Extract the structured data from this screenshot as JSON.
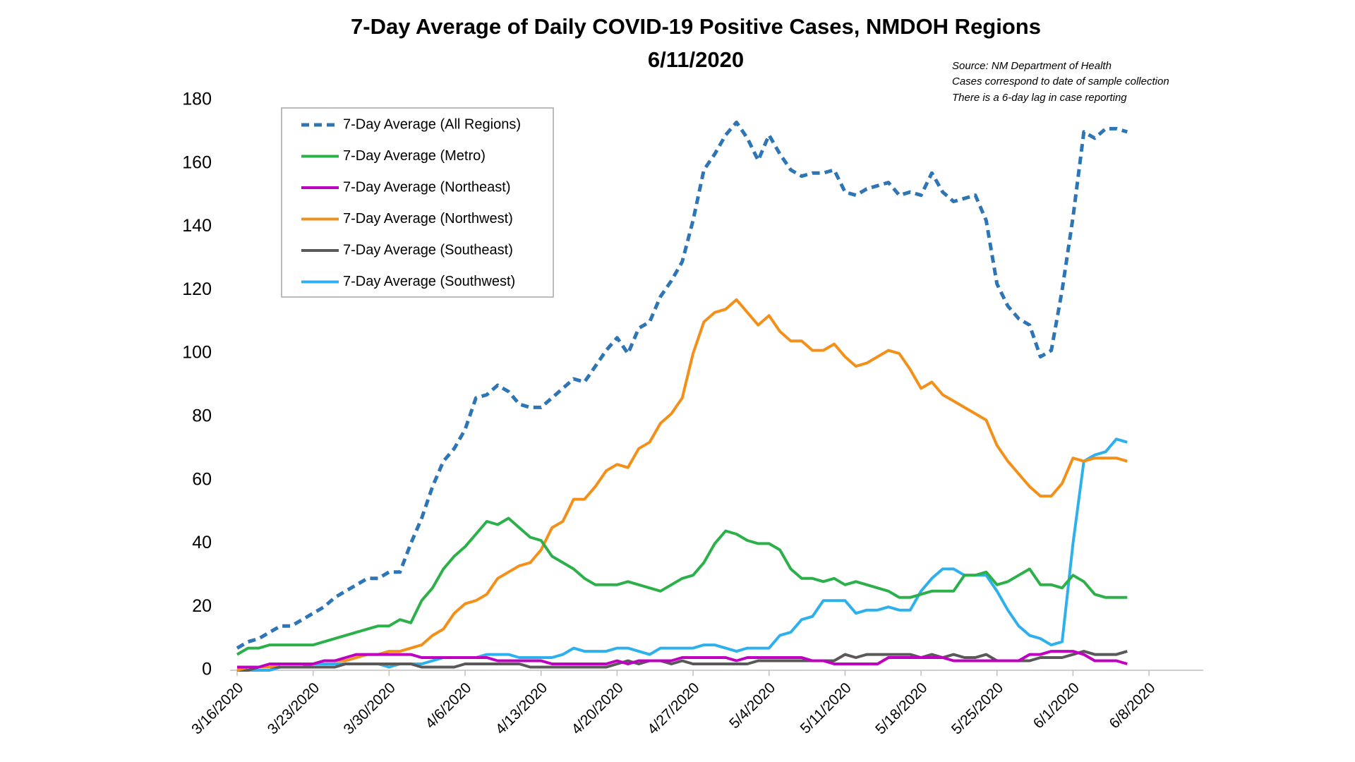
{
  "chart_data": {
    "type": "line",
    "title": "7-Day Average of Daily COVID-19 Positive Cases, NMDOH Regions",
    "subtitle": "6/11/2020",
    "annotations": [
      "Source: NM Department of Health",
      "Cases correspond to date of sample collection",
      "There is a 6-day lag in case reporting"
    ],
    "x": [
      "3/16/2020",
      "3/17/2020",
      "3/18/2020",
      "3/19/2020",
      "3/20/2020",
      "3/21/2020",
      "3/22/2020",
      "3/23/2020",
      "3/24/2020",
      "3/25/2020",
      "3/26/2020",
      "3/27/2020",
      "3/28/2020",
      "3/29/2020",
      "3/30/2020",
      "3/31/2020",
      "4/1/2020",
      "4/2/2020",
      "4/3/2020",
      "4/4/2020",
      "4/5/2020",
      "4/6/2020",
      "4/7/2020",
      "4/8/2020",
      "4/9/2020",
      "4/10/2020",
      "4/11/2020",
      "4/12/2020",
      "4/13/2020",
      "4/14/2020",
      "4/15/2020",
      "4/16/2020",
      "4/17/2020",
      "4/18/2020",
      "4/19/2020",
      "4/20/2020",
      "4/21/2020",
      "4/22/2020",
      "4/23/2020",
      "4/24/2020",
      "4/25/2020",
      "4/26/2020",
      "4/27/2020",
      "4/28/2020",
      "4/29/2020",
      "4/30/2020",
      "5/1/2020",
      "5/2/2020",
      "5/3/2020",
      "5/4/2020",
      "5/5/2020",
      "5/6/2020",
      "5/7/2020",
      "5/8/2020",
      "5/9/2020",
      "5/10/2020",
      "5/11/2020",
      "5/12/2020",
      "5/13/2020",
      "5/14/2020",
      "5/15/2020",
      "5/16/2020",
      "5/17/2020",
      "5/18/2020",
      "5/19/2020",
      "5/20/2020",
      "5/21/2020",
      "5/22/2020",
      "5/23/2020",
      "5/24/2020",
      "5/25/2020",
      "5/26/2020",
      "5/27/2020",
      "5/28/2020",
      "5/29/2020",
      "5/30/2020",
      "5/31/2020",
      "6/1/2020",
      "6/2/2020",
      "6/3/2020",
      "6/4/2020",
      "6/5/2020",
      "6/6/2020"
    ],
    "series": [
      {
        "name": "7-Day Average (All Regions)",
        "color": "#2e75b6",
        "style": "dashed",
        "values": [
          7,
          9,
          10,
          12,
          14,
          14,
          16,
          18,
          20,
          23,
          25,
          27,
          29,
          29,
          31,
          31,
          40,
          48,
          58,
          66,
          70,
          76,
          86,
          87,
          90,
          88,
          84,
          83,
          83,
          86,
          89,
          92,
          91,
          96,
          101,
          105,
          100,
          108,
          110,
          118,
          123,
          129,
          142,
          158,
          163,
          169,
          173,
          168,
          161,
          169,
          163,
          158,
          156,
          157,
          157,
          158,
          151,
          150,
          152,
          153,
          154,
          150,
          151,
          150,
          157,
          151,
          148,
          149,
          150,
          142,
          122,
          115,
          111,
          109,
          99,
          101,
          120,
          143,
          170,
          168,
          171,
          171,
          170
        ]
      },
      {
        "name": "7-Day Average (Metro)",
        "color": "#2bb04a",
        "style": "solid",
        "values": [
          5,
          7,
          7,
          8,
          8,
          8,
          8,
          8,
          9,
          10,
          11,
          12,
          13,
          14,
          14,
          16,
          15,
          22,
          26,
          32,
          36,
          39,
          43,
          47,
          46,
          48,
          45,
          42,
          41,
          36,
          34,
          32,
          29,
          27,
          27,
          27,
          28,
          27,
          26,
          25,
          27,
          29,
          30,
          34,
          40,
          44,
          43,
          41,
          40,
          40,
          38,
          32,
          29,
          29,
          28,
          29,
          27,
          28,
          27,
          26,
          25,
          23,
          23,
          24,
          25,
          25,
          25,
          30,
          30,
          31,
          27,
          28,
          30,
          32,
          27,
          27,
          26,
          30,
          28,
          24,
          23,
          23,
          23
        ]
      },
      {
        "name": "7-Day Average (Northeast)",
        "color": "#c000c0",
        "style": "solid",
        "values": [
          1,
          1,
          1,
          2,
          2,
          2,
          2,
          2,
          3,
          3,
          4,
          5,
          5,
          5,
          5,
          5,
          5,
          4,
          4,
          4,
          4,
          4,
          4,
          4,
          3,
          3,
          3,
          3,
          3,
          2,
          2,
          2,
          2,
          2,
          2,
          3,
          2,
          3,
          3,
          3,
          3,
          4,
          4,
          4,
          4,
          4,
          3,
          4,
          4,
          4,
          4,
          4,
          4,
          3,
          3,
          2,
          2,
          2,
          2,
          2,
          4,
          4,
          4,
          4,
          4,
          4,
          3,
          3,
          3,
          3,
          3,
          3,
          3,
          5,
          5,
          6,
          6,
          6,
          5,
          3,
          3,
          3,
          2
        ]
      },
      {
        "name": "7-Day Average (Northwest)",
        "color": "#f39019",
        "style": "solid",
        "values": [
          0,
          1,
          1,
          1,
          2,
          2,
          2,
          2,
          3,
          3,
          3,
          4,
          5,
          5,
          6,
          6,
          7,
          8,
          11,
          13,
          18,
          21,
          22,
          24,
          29,
          31,
          33,
          34,
          38,
          45,
          47,
          54,
          54,
          58,
          63,
          65,
          64,
          70,
          72,
          78,
          81,
          86,
          100,
          110,
          113,
          114,
          117,
          113,
          109,
          112,
          107,
          104,
          104,
          101,
          101,
          103,
          99,
          96,
          97,
          99,
          101,
          100,
          95,
          89,
          91,
          87,
          85,
          83,
          81,
          79,
          71,
          66,
          62,
          58,
          55,
          55,
          59,
          67,
          66,
          67,
          67,
          67,
          66
        ]
      },
      {
        "name": "7-Day Average (Southeast)",
        "color": "#595959",
        "style": "solid",
        "values": [
          0,
          0,
          1,
          1,
          1,
          1,
          1,
          1,
          1,
          1,
          2,
          2,
          2,
          2,
          2,
          2,
          2,
          1,
          1,
          1,
          1,
          2,
          2,
          2,
          2,
          2,
          2,
          1,
          1,
          1,
          1,
          1,
          1,
          1,
          1,
          2,
          3,
          2,
          3,
          3,
          2,
          3,
          2,
          2,
          2,
          2,
          2,
          2,
          3,
          3,
          3,
          3,
          3,
          3,
          3,
          3,
          5,
          4,
          5,
          5,
          5,
          5,
          5,
          4,
          5,
          4,
          5,
          4,
          4,
          5,
          3,
          3,
          3,
          3,
          4,
          4,
          4,
          5,
          6,
          5,
          5,
          5,
          6
        ]
      },
      {
        "name": "7-Day Average (Southwest)",
        "color": "#2eb0ed",
        "style": "solid",
        "values": [
          0,
          0,
          0,
          0,
          1,
          1,
          1,
          2,
          2,
          2,
          2,
          2,
          2,
          2,
          1,
          2,
          2,
          2,
          3,
          4,
          4,
          4,
          4,
          5,
          5,
          5,
          4,
          4,
          4,
          4,
          5,
          7,
          6,
          6,
          6,
          7,
          7,
          6,
          5,
          7,
          7,
          7,
          7,
          8,
          8,
          7,
          6,
          7,
          7,
          7,
          11,
          12,
          16,
          17,
          22,
          22,
          22,
          18,
          19,
          19,
          20,
          19,
          19,
          25,
          29,
          32,
          32,
          30,
          30,
          30,
          25,
          19,
          14,
          11,
          10,
          8,
          9,
          40,
          66,
          68,
          69,
          73,
          72
        ]
      }
    ],
    "xlim": [
      "3/16/2020",
      "6/13/2020"
    ],
    "xticks": [
      "3/16/2020",
      "3/23/2020",
      "3/30/2020",
      "4/6/2020",
      "4/13/2020",
      "4/20/2020",
      "4/27/2020",
      "5/4/2020",
      "5/11/2020",
      "5/18/2020",
      "5/25/2020",
      "6/1/2020",
      "6/8/2020"
    ],
    "ylim": [
      0,
      180
    ],
    "yticks": [
      0,
      20,
      40,
      60,
      80,
      100,
      120,
      140,
      160,
      180
    ],
    "grid": false,
    "legend": "upper left"
  }
}
